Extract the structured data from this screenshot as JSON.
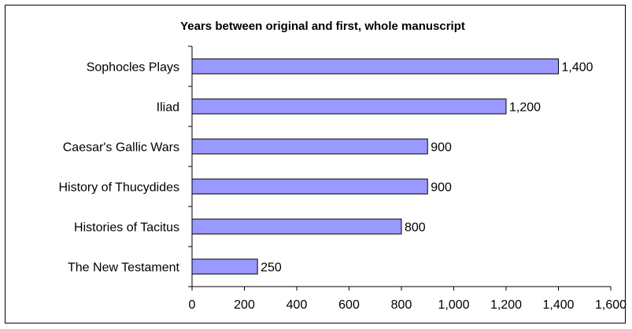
{
  "chart_data": {
    "type": "bar",
    "orientation": "horizontal",
    "title": "Years between original and first, whole manuscript",
    "categories": [
      "Sophocles Plays",
      "Iliad",
      "Caesar's Gallic Wars",
      "History of Thucydides",
      "Histories of Tacitus",
      "The New Testament"
    ],
    "values": [
      1400,
      1200,
      900,
      900,
      800,
      250
    ],
    "data_labels": [
      "1,400",
      "1,200",
      "900",
      "900",
      "800",
      "250"
    ],
    "xlim": [
      0,
      1600
    ],
    "x_ticks": [
      0,
      200,
      400,
      600,
      800,
      1000,
      1200,
      1400,
      1600
    ],
    "x_tick_labels": [
      "0",
      "200",
      "400",
      "600",
      "800",
      "1,000",
      "1,200",
      "1,400",
      "1,600"
    ],
    "xlabel": "",
    "ylabel": "",
    "grid": false,
    "legend": "none",
    "colors": {
      "bar_fill": "#9999ff",
      "bar_stroke": "#000000",
      "axis": "#000000"
    }
  }
}
